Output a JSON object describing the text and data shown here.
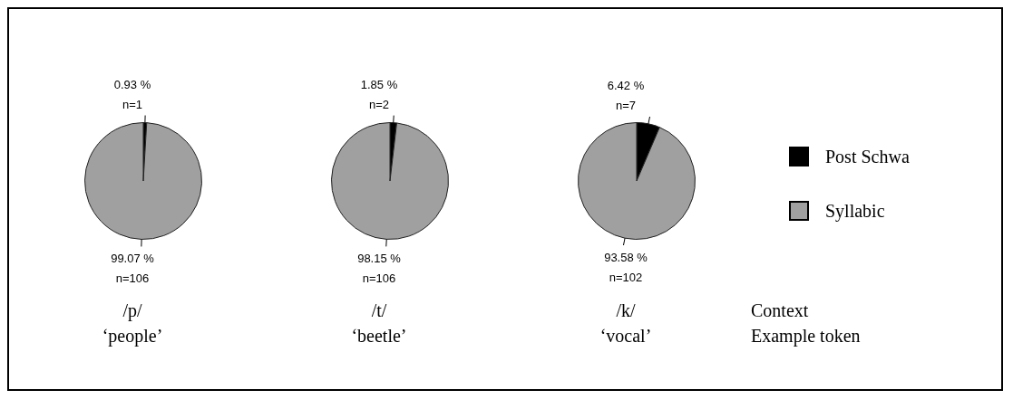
{
  "chart_data": [
    {
      "type": "pie",
      "categories": [
        null,
        null
      ],
      "values": [
        0.93,
        99.07
      ],
      "colors": [
        "#000000",
        "#a0a0a0"
      ],
      "value_labels": [
        "0.93 %\nn=1",
        "99.07 %\nn=106"
      ],
      "xlabel": "/p/",
      "annotations": [
        "‘people’"
      ]
    },
    {
      "type": "pie",
      "categories": [
        null,
        null
      ],
      "values": [
        1.85,
        98.15
      ],
      "colors": [
        "#000000",
        "#a0a0a0"
      ],
      "value_labels": [
        "1.85 %\nn=2",
        "98.15 %\nn=106"
      ],
      "xlabel": "/t/",
      "annotations": [
        "‘beetle’"
      ]
    },
    {
      "type": "pie",
      "categories": [
        "Post Schwa",
        "Syllabic"
      ],
      "values": [
        6.42,
        93.58
      ],
      "colors": [
        "#000000",
        "#a0a0a0"
      ],
      "value_labels": [
        "6.42 %\nn=7",
        "93.58 %\nn=102"
      ],
      "xlabel": "/k/",
      "annotations": [
        "‘vocal’"
      ],
      "legend": "right"
    },
    {
      "type": "other",
      "annotations": [
        "Context",
        "Example token"
      ]
    }
  ]
}
